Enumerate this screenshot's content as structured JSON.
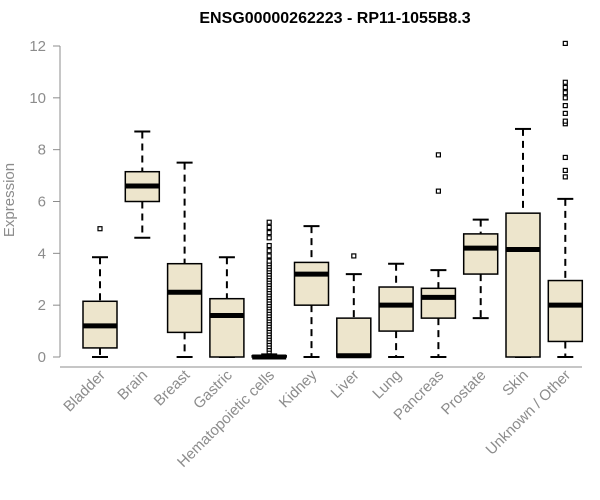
{
  "chart_data": {
    "type": "boxplot",
    "title": "ENSG00000262223 - RP11-1055B8.3",
    "ylabel": "Expression",
    "xlabel": "",
    "ylim": [
      0,
      12
    ],
    "yticks": [
      0,
      2,
      4,
      6,
      8,
      10,
      12
    ],
    "ytick_labels": [
      "0",
      "2",
      "4",
      "6",
      "8",
      "10",
      "12"
    ],
    "grid": false,
    "colors": {
      "box_fill": "#ede5cc",
      "box_stroke": "#000000",
      "axis": "#8c8c8c"
    },
    "categories": [
      "Bladder",
      "Brain",
      "Breast",
      "Gastric",
      "Hematopoietic cells",
      "Kidney",
      "Liver",
      "Lung",
      "Pancreas",
      "Prostate",
      "Skin",
      "Unknown / Other"
    ],
    "boxes": [
      {
        "category": "Bladder",
        "whisker_low": 0.0,
        "q1": 0.35,
        "median": 1.2,
        "q3": 2.15,
        "whisker_high": 3.85,
        "outliers": [
          4.95
        ]
      },
      {
        "category": "Brain",
        "whisker_low": 4.6,
        "q1": 6.0,
        "median": 6.6,
        "q3": 7.15,
        "whisker_high": 8.7,
        "outliers": []
      },
      {
        "category": "Breast",
        "whisker_low": 0.0,
        "q1": 0.95,
        "median": 2.5,
        "q3": 3.6,
        "whisker_high": 7.5,
        "outliers": []
      },
      {
        "category": "Gastric",
        "whisker_low": 0.0,
        "q1": 0.0,
        "median": 1.6,
        "q3": 2.25,
        "whisker_high": 3.85,
        "outliers": []
      },
      {
        "category": "Hematopoietic cells",
        "whisker_low": 0.0,
        "q1": 0.0,
        "median": 0.0,
        "q3": 0.05,
        "whisker_high": 0.1,
        "outliers": [
          0.2,
          0.3,
          0.4,
          0.5,
          0.6,
          0.7,
          0.8,
          0.9,
          1.0,
          1.1,
          1.2,
          1.3,
          1.4,
          1.5,
          1.6,
          1.7,
          1.8,
          1.9,
          2.0,
          2.1,
          2.2,
          2.3,
          2.4,
          2.5,
          2.6,
          2.7,
          2.8,
          2.9,
          3.0,
          3.1,
          3.2,
          3.3,
          3.4,
          3.5,
          3.6,
          3.7,
          3.9,
          4.1,
          4.3,
          4.6,
          4.8,
          5.0,
          5.2
        ]
      },
      {
        "category": "Kidney",
        "whisker_low": 0.0,
        "q1": 2.0,
        "median": 3.2,
        "q3": 3.65,
        "whisker_high": 5.05,
        "outliers": []
      },
      {
        "category": "Liver",
        "whisker_low": 0.0,
        "q1": 0.0,
        "median": 0.05,
        "q3": 1.5,
        "whisker_high": 3.2,
        "outliers": [
          3.9
        ]
      },
      {
        "category": "Lung",
        "whisker_low": 0.0,
        "q1": 1.0,
        "median": 2.0,
        "q3": 2.7,
        "whisker_high": 3.6,
        "outliers": []
      },
      {
        "category": "Pancreas",
        "whisker_low": 0.0,
        "q1": 1.5,
        "median": 2.3,
        "q3": 2.65,
        "whisker_high": 3.35,
        "outliers": [
          6.4,
          7.8
        ]
      },
      {
        "category": "Prostate",
        "whisker_low": 1.5,
        "q1": 3.2,
        "median": 4.2,
        "q3": 4.75,
        "whisker_high": 5.3,
        "outliers": []
      },
      {
        "category": "Skin",
        "whisker_low": 0.0,
        "q1": 0.0,
        "median": 4.15,
        "q3": 5.55,
        "whisker_high": 8.8,
        "outliers": []
      },
      {
        "category": "Unknown / Other",
        "whisker_low": 0.0,
        "q1": 0.6,
        "median": 2.0,
        "q3": 2.95,
        "whisker_high": 6.1,
        "outliers": [
          6.95,
          7.2,
          7.7,
          9.0,
          9.1,
          9.4,
          9.7,
          10.0,
          10.2,
          10.4,
          10.6,
          12.1
        ]
      }
    ]
  }
}
